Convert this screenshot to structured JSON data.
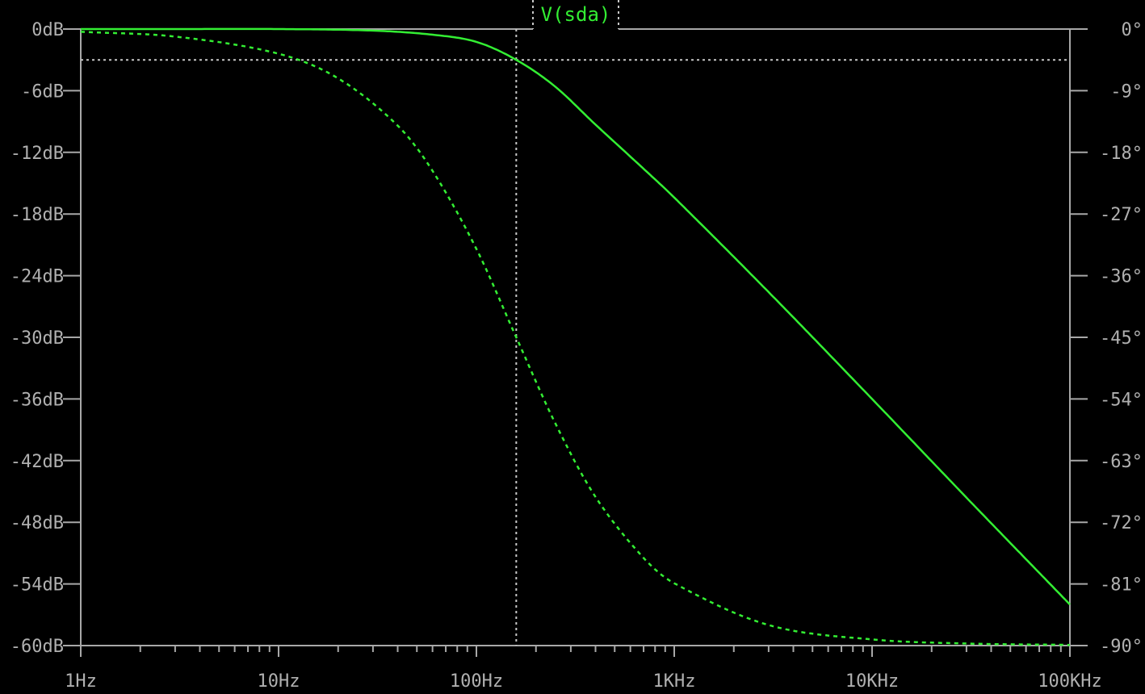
{
  "chart_data": {
    "type": "line",
    "title": "V(sda)",
    "x_scale": "log",
    "xlim": [
      "1Hz",
      "100KHz"
    ],
    "x_tick_labels": [
      "1Hz",
      "10Hz",
      "100Hz",
      "1KHz",
      "10KHz",
      "100KHz"
    ],
    "y_left_label_unit": "dB",
    "ylim_left": [
      -60,
      0
    ],
    "y_left_tick_labels": [
      "0dB",
      "-6dB",
      "-12dB",
      "-18dB",
      "-24dB",
      "-30dB",
      "-36dB",
      "-42dB",
      "-48dB",
      "-54dB",
      "-60dB"
    ],
    "ylim_right": [
      -90,
      0
    ],
    "y_right_tick_labels": [
      "0°",
      "-9°",
      "-18°",
      "-27°",
      "-36°",
      "-45°",
      "-54°",
      "-63°",
      "-72°",
      "-81°",
      "-90°"
    ],
    "grid": false,
    "cursor": {
      "frequency_hz": 159,
      "magnitude_db": -3
    },
    "series": [
      {
        "name": "V(sda)",
        "kind": "magnitude",
        "style": "solid",
        "x_hz": [
          1,
          3,
          10,
          30,
          60,
          100,
          159,
          250,
          400,
          700,
          1000,
          3000,
          10000,
          30000,
          100000
        ],
        "y_db": [
          0,
          0,
          0,
          -0.15,
          -0.55,
          -1.25,
          -3,
          -5.6,
          -9.3,
          -13.6,
          -16.4,
          -25.6,
          -36,
          -45.6,
          -56
        ]
      },
      {
        "name": "V(sda) phase",
        "kind": "phase",
        "style": "dashed",
        "x_hz": [
          1,
          3,
          10,
          20,
          40,
          60,
          100,
          159,
          250,
          400,
          700,
          1000,
          3000,
          10000,
          30000,
          100000
        ],
        "y_deg": [
          -0.4,
          -1.1,
          -3.6,
          -7.2,
          -14.1,
          -20.7,
          -32.1,
          -45,
          -57.5,
          -68.3,
          -77.2,
          -80.9,
          -87,
          -89.1,
          -89.7,
          -89.9
        ]
      }
    ],
    "colors": {
      "trace": "#33ee33",
      "axis": "#a8a8a8",
      "label": "#b0b0b0",
      "background": "#000000"
    }
  }
}
